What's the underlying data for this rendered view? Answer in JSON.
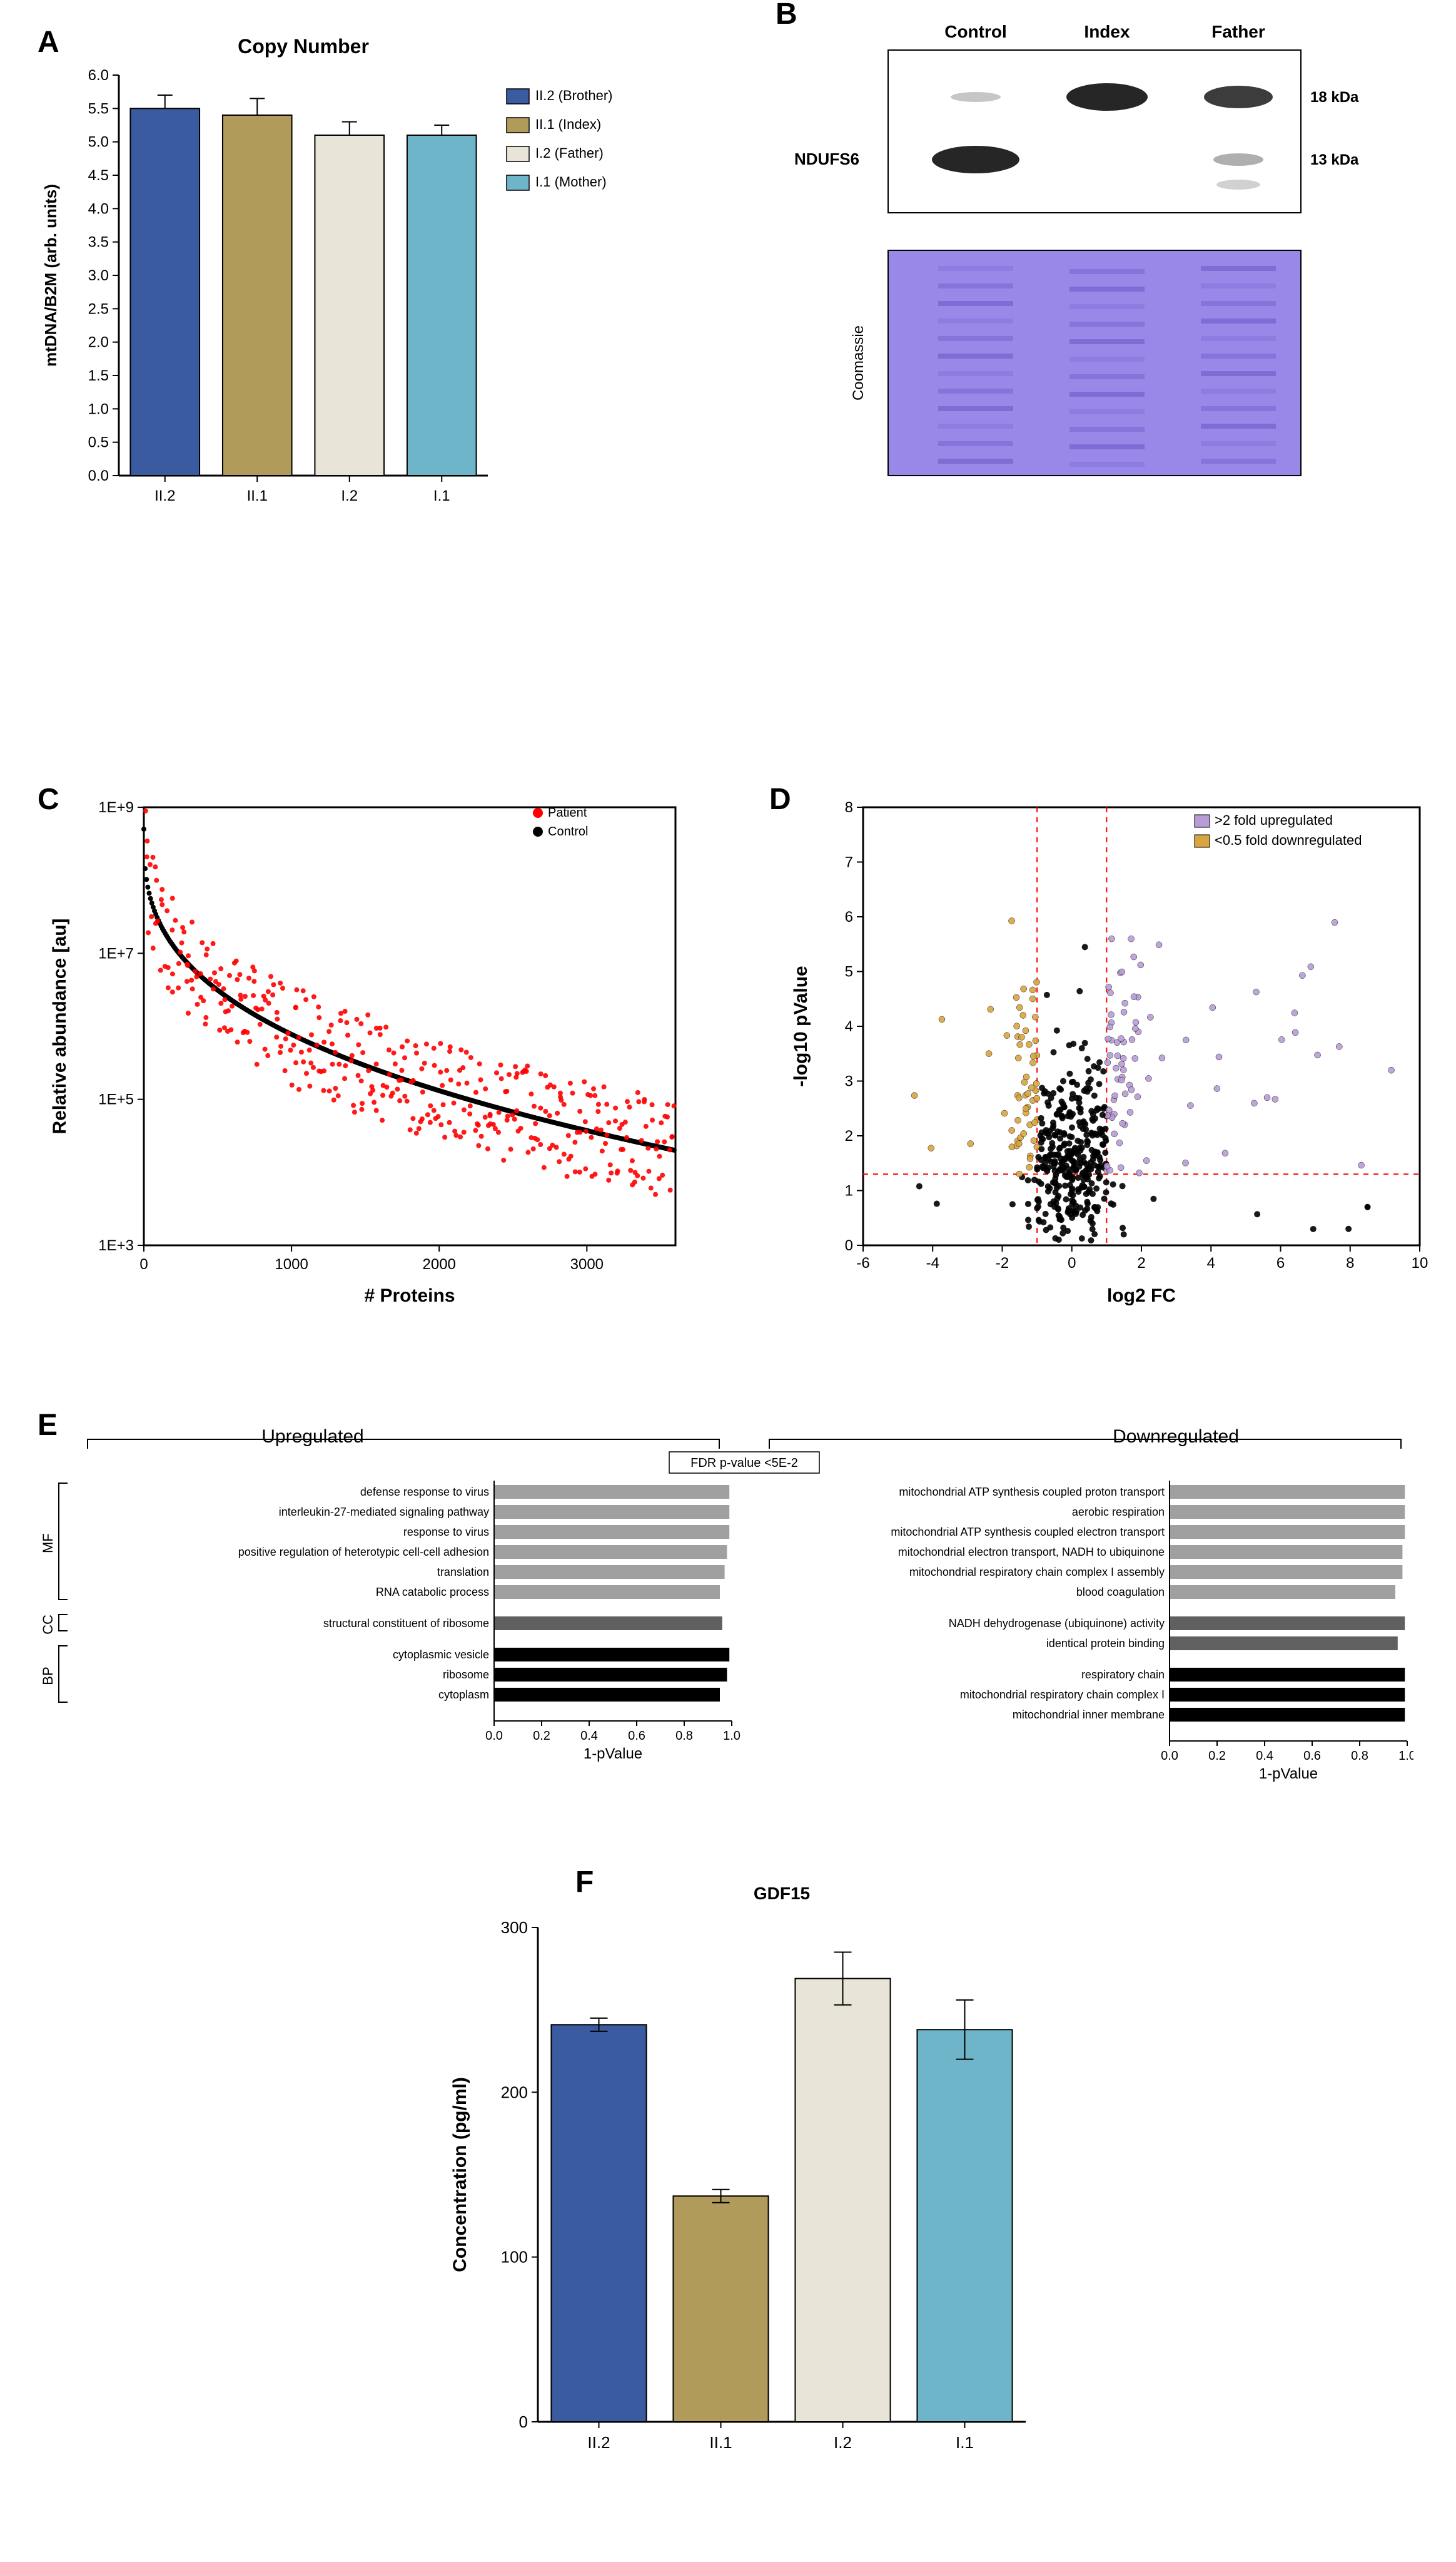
{
  "panelA": {
    "label": "A",
    "title": "Copy Number",
    "ylabel": "mtDNA/B2M (arb. units)",
    "categories": [
      "II.2",
      "II.1",
      "I.2",
      "I.1"
    ],
    "values": [
      5.5,
      5.4,
      5.1,
      5.1
    ],
    "errors": [
      0.2,
      0.25,
      0.2,
      0.15
    ],
    "bar_colors": [
      "#3a5ba0",
      "#b09b5b",
      "#e8e4d8",
      "#6eb5c9"
    ],
    "bar_borders": [
      "#000000",
      "#000000",
      "#000000",
      "#000000"
    ],
    "legend": [
      {
        "label": "II.2 (Brother)",
        "color": "#3a5ba0"
      },
      {
        "label": "II.1 (Index)",
        "color": "#b09b5b"
      },
      {
        "label": "I.2 (Father)",
        "color": "#e8e4d8"
      },
      {
        "label": "I.1 (Mother)",
        "color": "#6eb5c9"
      }
    ],
    "ylim": [
      0,
      6
    ],
    "ytick_step": 0.5,
    "title_fontsize": 32,
    "axis_fontsize": 26,
    "tick_fontsize": 24,
    "legend_fontsize": 22
  },
  "panelB": {
    "label": "B",
    "lane_labels": [
      "Control",
      "Index",
      "Father"
    ],
    "mw_labels": [
      "18 kDa",
      "13 kDa"
    ],
    "antibody_label": "NDUFS6",
    "loading_label": "Coomassie",
    "label_fontsize": 28,
    "blot_bg": "#ffffff",
    "band_color": "#1a1a1a",
    "coomassie_bg": "#9988e8",
    "coomassie_band": "#6e5bc7"
  },
  "panelC": {
    "label": "C",
    "xlabel": "# Proteins",
    "ylabel": "Relative abundance [au]",
    "legend": [
      {
        "label": "Patient",
        "color": "#ff0000"
      },
      {
        "label": "Control",
        "color": "#000000"
      }
    ],
    "xlim": [
      0,
      3600
    ],
    "ylim_log": [
      1000.0,
      1000000000.0
    ],
    "xtick_step": 1000,
    "ytick_labels": [
      "1E+3",
      "1E+5",
      "1E+7",
      "1E+9"
    ],
    "ytick_vals": [
      1000.0,
      100000.0,
      10000000.0,
      1000000000.0
    ],
    "marker_size": 4,
    "title_fontsize": 28,
    "axis_fontsize": 30,
    "tick_fontsize": 24,
    "legend_fontsize": 20,
    "n_points": 400
  },
  "panelD": {
    "label": "D",
    "xlabel": "log2 FC",
    "ylabel": "-log10 pValue",
    "xlim": [
      -6,
      10
    ],
    "ylim": [
      0,
      8
    ],
    "xtick_step": 2,
    "ytick_step": 1,
    "threshold_x_neg": -1,
    "threshold_x_pos": 1,
    "threshold_y": 1.3,
    "colors": {
      "ns": "#000000",
      "up": "#b79cd6",
      "down": "#d9a53f",
      "threshold_line": "#ff0000"
    },
    "legend": [
      {
        "label": ">2 fold upregulated",
        "color": "#b79cd6"
      },
      {
        "label": "<0.5 fold downregulated",
        "color": "#d9a53f"
      }
    ],
    "axis_fontsize": 30,
    "tick_fontsize": 24,
    "legend_fontsize": 22,
    "n_points": 500
  },
  "panelE": {
    "label": "E",
    "fdr_label": "FDR p-value <5E-2",
    "upregulated_title": "Upregulated",
    "downregulated_title": "Downregulated",
    "xlabel": "1-pValue",
    "category_labels": [
      "MF",
      "CC",
      "BP"
    ],
    "xlim": [
      0,
      1.0
    ],
    "xtick_step": 0.2,
    "colors": {
      "mf": "#a0a0a0",
      "cc": "#606060",
      "bp": "#000000"
    },
    "upregulated": {
      "mf": [
        {
          "label": "defense response to virus",
          "val": 0.99
        },
        {
          "label": "interleukin-27-mediated signaling pathway",
          "val": 0.99
        },
        {
          "label": "response to virus",
          "val": 0.99
        },
        {
          "label": "positive regulation of heterotypic cell-cell adhesion",
          "val": 0.98
        },
        {
          "label": "translation",
          "val": 0.97
        },
        {
          "label": "RNA catabolic process",
          "val": 0.95
        }
      ],
      "cc": [
        {
          "label": "structural constituent of ribosome",
          "val": 0.96
        }
      ],
      "bp": [
        {
          "label": "cytoplasmic vesicle",
          "val": 0.99
        },
        {
          "label": "ribosome",
          "val": 0.98
        },
        {
          "label": "cytoplasm",
          "val": 0.95
        }
      ]
    },
    "downregulated": {
      "mf": [
        {
          "label": "mitochondrial ATP synthesis coupled proton transport",
          "val": 0.99
        },
        {
          "label": "aerobic respiration",
          "val": 0.99
        },
        {
          "label": "mitochondrial ATP synthesis coupled electron transport",
          "val": 0.99
        },
        {
          "label": "mitochondrial electron transport, NADH to ubiquinone",
          "val": 0.98
        },
        {
          "label": "mitochondrial respiratory chain complex I assembly",
          "val": 0.98
        },
        {
          "label": "blood coagulation",
          "val": 0.95
        }
      ],
      "cc": [
        {
          "label": "NADH dehydrogenase (ubiquinone) activity",
          "val": 0.99
        },
        {
          "label": "identical protein binding",
          "val": 0.96
        }
      ],
      "bp": [
        {
          "label": "respiratory chain",
          "val": 0.99
        },
        {
          "label": "mitochondrial respiratory chain complex I",
          "val": 0.99
        },
        {
          "label": "mitochondrial inner membrane",
          "val": 0.99
        }
      ]
    },
    "title_fontsize": 30,
    "axis_fontsize": 24,
    "tick_fontsize": 20,
    "row_fontsize": 18
  },
  "panelF": {
    "label": "F",
    "title": "GDF15",
    "ylabel": "Concentration (pg/ml)",
    "categories": [
      "II.2",
      "II.1",
      "I.2",
      "I.1"
    ],
    "values": [
      241,
      137,
      269,
      238
    ],
    "errors": [
      4,
      4,
      16,
      18
    ],
    "bar_colors": [
      "#3a5ba0",
      "#b09b5b",
      "#e8e4d8",
      "#6eb5c9"
    ],
    "ylim": [
      0,
      300
    ],
    "ytick_step": 100,
    "title_fontsize": 28,
    "axis_fontsize": 30,
    "tick_fontsize": 26
  }
}
